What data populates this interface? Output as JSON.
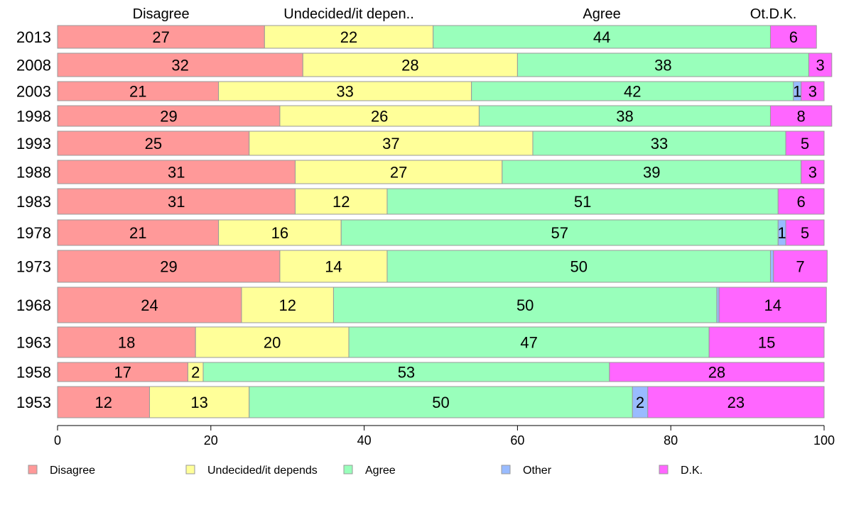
{
  "chart_data": {
    "type": "bar",
    "orientation": "horizontal",
    "stacked": true,
    "categories": [
      "2013",
      "2008",
      "2003",
      "1998",
      "1993",
      "1988",
      "1983",
      "1978",
      "1973",
      "1968",
      "1963",
      "1958",
      "1953"
    ],
    "headers": [
      "Disagree",
      "Undecided/it depen..",
      "Agree",
      "Ot.",
      "D.K."
    ],
    "series": [
      {
        "name": "Disagree",
        "color": "#ff9999",
        "values": [
          27,
          32,
          21,
          29,
          25,
          31,
          31,
          21,
          29,
          24,
          18,
          17,
          12
        ]
      },
      {
        "name": "Undecided/it depends",
        "color": "#ffff99",
        "values": [
          22,
          28,
          33,
          26,
          37,
          27,
          12,
          16,
          14,
          12,
          20,
          2,
          13
        ]
      },
      {
        "name": "Agree",
        "color": "#99ffbb",
        "values": [
          44,
          38,
          42,
          38,
          33,
          39,
          51,
          57,
          50,
          50,
          47,
          53,
          50
        ]
      },
      {
        "name": "Other",
        "color": "#99bbff",
        "values": [
          0,
          0,
          1,
          0,
          0,
          0,
          0,
          1,
          0.4,
          0.3,
          0,
          0,
          2
        ]
      },
      {
        "name": "D.K.",
        "color": "#ff66ff",
        "values": [
          6,
          3,
          3,
          8,
          5,
          3,
          6,
          5,
          7,
          14,
          15,
          28,
          23
        ]
      }
    ],
    "xlim": [
      0,
      100
    ],
    "xticks": [
      0,
      20,
      40,
      60,
      80,
      100
    ],
    "legend_position": "bottom"
  }
}
